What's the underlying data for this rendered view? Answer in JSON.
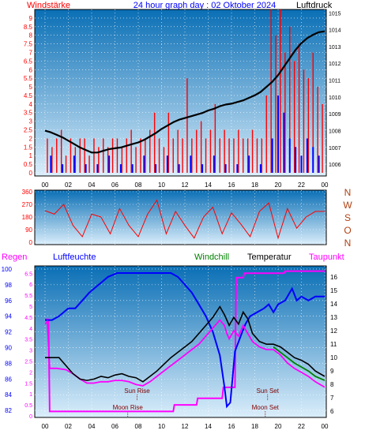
{
  "header": {
    "left": "Windstärke",
    "center": "24 hour graph day : 02 Oktober 2024",
    "right": "Luftdruck"
  },
  "colors": {
    "red": "#ff0000",
    "blue": "#0000ff",
    "black": "#000000",
    "magenta": "#ff00ff",
    "green": "#008000",
    "darkred": "#800000",
    "plot_top": "#0a6fb5",
    "plot_bottom": "#dbeefb"
  },
  "chart_data": [
    {
      "type": "line",
      "panel": "wind-pressure",
      "x_ticks": [
        "00",
        "02",
        "04",
        "06",
        "08",
        "10",
        "12",
        "14",
        "16",
        "18",
        "20",
        "22",
        "00"
      ],
      "x_range_hours": [
        0,
        24
      ],
      "wind_axis": {
        "labels": [
          "0",
          "0.5",
          "1",
          "1.5",
          "2",
          "2.5",
          "3",
          "3.5",
          "4",
          "4.5",
          "5",
          "5.5",
          "6",
          "6.5",
          "7",
          "7.5",
          "8",
          "8.5",
          "9"
        ],
        "ylim": [
          0,
          9.5
        ],
        "unit": "Bft"
      },
      "pressure_axis": {
        "labels": [
          "1006",
          "1007",
          "1008",
          "1009",
          "1010",
          "1011",
          "1012",
          "1013",
          "1014",
          "1015"
        ],
        "ylim": [
          1005.4,
          1015.2
        ],
        "unit": "hPa"
      },
      "pressure_series": {
        "x": [
          0,
          0.5,
          1,
          1.5,
          2,
          2.5,
          3,
          3.5,
          4,
          4.5,
          5,
          5.5,
          6,
          6.5,
          7,
          7.5,
          8,
          8.5,
          9,
          9.5,
          10,
          10.5,
          11,
          11.5,
          12,
          12.5,
          13,
          13.5,
          14,
          14.5,
          15,
          15.5,
          16,
          16.5,
          17,
          17.5,
          18,
          18.5,
          19,
          19.5,
          20,
          20.5,
          21,
          21.5,
          22,
          22.5,
          23,
          23.5,
          24
        ],
        "y": [
          1008.0,
          1007.9,
          1007.75,
          1007.6,
          1007.4,
          1007.2,
          1007.0,
          1006.85,
          1006.7,
          1006.7,
          1006.8,
          1006.9,
          1006.95,
          1007.0,
          1007.1,
          1007.2,
          1007.3,
          1007.45,
          1007.65,
          1007.85,
          1008.1,
          1008.3,
          1008.5,
          1008.65,
          1008.75,
          1008.85,
          1008.95,
          1009.05,
          1009.2,
          1009.3,
          1009.45,
          1009.55,
          1009.6,
          1009.7,
          1009.8,
          1009.95,
          1010.1,
          1010.3,
          1010.6,
          1010.9,
          1011.3,
          1011.8,
          1012.3,
          1012.8,
          1013.2,
          1013.5,
          1013.7,
          1013.85,
          1013.9
        ]
      },
      "wind_gust": {
        "x": [
          0.2,
          0.6,
          1.0,
          1.4,
          1.8,
          2.2,
          2.6,
          3.0,
          3.4,
          3.8,
          4.2,
          4.6,
          5.0,
          5.4,
          5.8,
          6.2,
          6.6,
          7.0,
          7.4,
          7.8,
          8.2,
          8.6,
          9.0,
          9.4,
          9.8,
          10.2,
          10.6,
          11.0,
          11.4,
          11.8,
          12.2,
          12.6,
          13.0,
          13.4,
          13.8,
          14.2,
          14.6,
          15.0,
          15.4,
          15.8,
          16.2,
          16.6,
          17.0,
          17.4,
          17.8,
          18.2,
          18.6,
          19.0,
          19.4,
          19.8,
          20.2,
          20.6,
          21.0,
          21.4,
          21.8,
          22.2,
          22.6,
          23.0,
          23.4,
          23.8
        ],
        "y": [
          2.0,
          1.5,
          2.0,
          2.5,
          1.0,
          2.0,
          1.5,
          2.0,
          2.0,
          1.0,
          2.0,
          1.5,
          2.0,
          1.5,
          2.0,
          2.0,
          1.5,
          2.0,
          2.5,
          1.5,
          2.0,
          2.0,
          2.5,
          3.5,
          2.0,
          1.5,
          3.5,
          2.0,
          2.5,
          2.0,
          5.5,
          2.0,
          2.5,
          3.0,
          2.0,
          2.5,
          4.0,
          2.0,
          2.5,
          2.0,
          2.0,
          2.5,
          2.0,
          2.0,
          2.5,
          2.0,
          2.0,
          4.5,
          9.5,
          8.0,
          9.5,
          7.0,
          8.5,
          6.5,
          7.5,
          6.0,
          5.5,
          7.0,
          5.0,
          4.0
        ]
      },
      "wind_mean": {
        "x": [
          0.5,
          1.5,
          2.5,
          3.5,
          4.5,
          5.5,
          6.5,
          7.5,
          8.5,
          9.5,
          10.5,
          11.5,
          12.5,
          13.5,
          14.5,
          15.5,
          16.5,
          17.5,
          18.5,
          19.5,
          20.0,
          20.5,
          21.0,
          21.5,
          22.0,
          22.5,
          23.0,
          23.5
        ],
        "y": [
          1.0,
          0.5,
          1.0,
          0.5,
          0.5,
          1.0,
          0.5,
          0.5,
          1.0,
          0.5,
          1.0,
          0.5,
          1.0,
          0.5,
          1.0,
          0.5,
          0.5,
          1.0,
          0.5,
          2.0,
          4.5,
          3.5,
          2.0,
          1.5,
          1.0,
          2.0,
          1.5,
          1.0
        ]
      }
    },
    {
      "type": "line",
      "panel": "wind-direction",
      "x_ticks": [
        "00",
        "02",
        "04",
        "06",
        "08",
        "10",
        "12",
        "14",
        "16",
        "18",
        "20",
        "22",
        "00"
      ],
      "y_labels": [
        "0",
        "90",
        "180",
        "270",
        "360"
      ],
      "ylim": [
        0,
        360
      ],
      "compass": [
        "N",
        "W",
        "S",
        "O",
        "N"
      ],
      "direction_series": {
        "x": [
          0,
          0.8,
          1.6,
          2.4,
          3.2,
          4.0,
          4.8,
          5.6,
          6.4,
          7.2,
          8.0,
          8.8,
          9.6,
          10.4,
          11.2,
          12.0,
          12.8,
          13.6,
          14.4,
          15.2,
          16.0,
          16.8,
          17.6,
          18.4,
          19.2,
          20.0,
          20.8,
          21.6,
          22.4,
          23.2,
          24
        ],
        "y": [
          225,
          200,
          270,
          120,
          40,
          200,
          180,
          60,
          240,
          120,
          40,
          200,
          300,
          60,
          220,
          120,
          30,
          180,
          250,
          60,
          210,
          130,
          40,
          220,
          280,
          30,
          240,
          100,
          180,
          220,
          220
        ]
      }
    },
    {
      "type": "line",
      "panel": "humidity-temperature",
      "legend": [
        "Regen",
        "Luftfeuchte",
        "Windchill",
        "Temperatur",
        "Taupunkt"
      ],
      "x_ticks": [
        "00",
        "02",
        "04",
        "06",
        "08",
        "10",
        "12",
        "14",
        "16",
        "18",
        "20",
        "22",
        "00"
      ],
      "humidity_axis": {
        "labels": [
          "82",
          "84",
          "86",
          "88",
          "90",
          "92",
          "94",
          "96",
          "98",
          "100"
        ],
        "ylim": [
          81.2,
          100.4
        ],
        "unit": "%"
      },
      "rain_axis": {
        "labels": [
          "0",
          "0.5",
          "1",
          "1.5",
          "2",
          "2.5",
          "3",
          "3.5",
          "4",
          "4.5",
          "5",
          "5.5",
          "6",
          "6.5"
        ],
        "ylim": [
          0,
          6.8
        ],
        "unit": "mm"
      },
      "temp_axis": {
        "labels": [
          "6",
          "7",
          "8",
          "9",
          "10",
          "11",
          "12",
          "13",
          "14",
          "15",
          "16"
        ],
        "ylim": [
          5.6,
          16.6
        ],
        "unit": "°C"
      },
      "annotations": [
        "Sun Rise",
        "Sun Set",
        "Moon Rise",
        "Moon Set"
      ],
      "humidity_series": {
        "x": [
          0,
          0.6,
          1.2,
          2.0,
          2.6,
          3.2,
          3.8,
          4.6,
          5.4,
          6.2,
          7.0,
          8.0,
          9.0,
          10.0,
          10.8,
          11.4,
          12.0,
          12.6,
          13.2,
          13.8,
          14.4,
          15.0,
          15.4,
          15.6,
          15.9,
          16.3,
          16.8,
          17.2,
          17.6,
          18.2,
          18.8,
          19.2,
          19.6,
          20.0,
          20.6,
          21.2,
          21.6,
          22.0,
          22.6,
          23.2,
          24
        ],
        "y": [
          93.5,
          93.5,
          94.0,
          95.0,
          95.0,
          96.0,
          97.0,
          98.0,
          99.0,
          99.5,
          99.5,
          99.5,
          99.5,
          99.5,
          99.5,
          99.0,
          98.0,
          97.0,
          95.5,
          94.0,
          92.0,
          89.0,
          85.0,
          82.5,
          83.0,
          89.5,
          91.5,
          93.0,
          94.0,
          94.5,
          95.0,
          95.5,
          94.5,
          95.5,
          96.0,
          97.5,
          96.0,
          96.5,
          96.0,
          96.5,
          96.5
        ]
      },
      "temperature_series": {
        "x": [
          0,
          0.6,
          1.2,
          1.8,
          2.4,
          3.0,
          3.6,
          4.2,
          4.8,
          5.4,
          6.0,
          6.6,
          7.2,
          7.8,
          8.4,
          9.0,
          9.6,
          10.2,
          10.8,
          11.4,
          12.0,
          12.6,
          13.2,
          13.8,
          14.4,
          15.0,
          15.4,
          15.6,
          15.8,
          16.2,
          16.6,
          17.0,
          17.4,
          17.8,
          18.4,
          19.0,
          19.6,
          20.2,
          20.8,
          21.4,
          22.0,
          22.6,
          23.2,
          24
        ],
        "y": [
          10.0,
          10.0,
          10.0,
          9.4,
          8.8,
          8.4,
          8.3,
          8.4,
          8.6,
          8.5,
          8.7,
          8.8,
          8.6,
          8.5,
          8.2,
          8.6,
          9.0,
          9.5,
          10.0,
          10.4,
          10.8,
          11.2,
          11.8,
          12.4,
          13.0,
          13.8,
          13.2,
          12.8,
          12.4,
          13.0,
          12.5,
          13.4,
          12.9,
          11.8,
          11.2,
          11.0,
          11.0,
          10.8,
          10.4,
          10.0,
          9.8,
          9.5,
          9.0,
          8.6
        ]
      },
      "dewpoint_series": {
        "x": [
          0,
          0.2,
          0.4,
          1.0,
          1.8,
          2.4,
          3.0,
          3.6,
          4.2,
          4.8,
          5.4,
          6.0,
          6.6,
          7.2,
          7.8,
          8.4,
          9.0,
          9.6,
          10.2,
          10.8,
          11.4,
          12.0,
          12.6,
          13.2,
          13.8,
          14.4,
          15.0,
          15.4,
          15.6,
          15.8,
          16.2,
          16.6,
          17.0,
          17.4,
          17.8,
          18.4,
          19.0,
          19.6,
          20.2,
          20.8,
          21.4,
          22.0,
          22.6,
          23.2,
          24
        ],
        "y": [
          12.5,
          12.7,
          9.2,
          9.2,
          9.1,
          8.8,
          8.4,
          8.1,
          8.1,
          8.2,
          8.2,
          8.3,
          8.3,
          8.2,
          8.0,
          7.9,
          8.2,
          8.6,
          9.0,
          9.4,
          9.8,
          10.2,
          10.6,
          11.0,
          11.6,
          12.2,
          12.8,
          12.4,
          11.8,
          11.4,
          12.0,
          11.6,
          12.4,
          11.8,
          11.2,
          10.8,
          10.6,
          10.6,
          10.2,
          9.6,
          9.2,
          8.9,
          8.6,
          8.2,
          7.8
        ]
      },
      "windchill_series": {
        "x": [
          19.6,
          20.2,
          20.8,
          21.4,
          22.0,
          22.6,
          23.2,
          24
        ],
        "y": [
          10.8,
          10.4,
          10.0,
          9.6,
          9.3,
          9.0,
          8.6,
          8.3
        ]
      },
      "rain_series": {
        "x": [
          0,
          0.3,
          0.4,
          11.0,
          11.1,
          13.0,
          13.1,
          15.2,
          15.3,
          16.3,
          16.4,
          17.0,
          17.1,
          20.5,
          20.6,
          24
        ],
        "y": [
          4.4,
          4.4,
          0.2,
          0.2,
          0.5,
          0.5,
          0.8,
          0.8,
          1.3,
          1.3,
          6.3,
          6.3,
          6.5,
          6.5,
          6.6,
          6.6
        ]
      }
    }
  ]
}
